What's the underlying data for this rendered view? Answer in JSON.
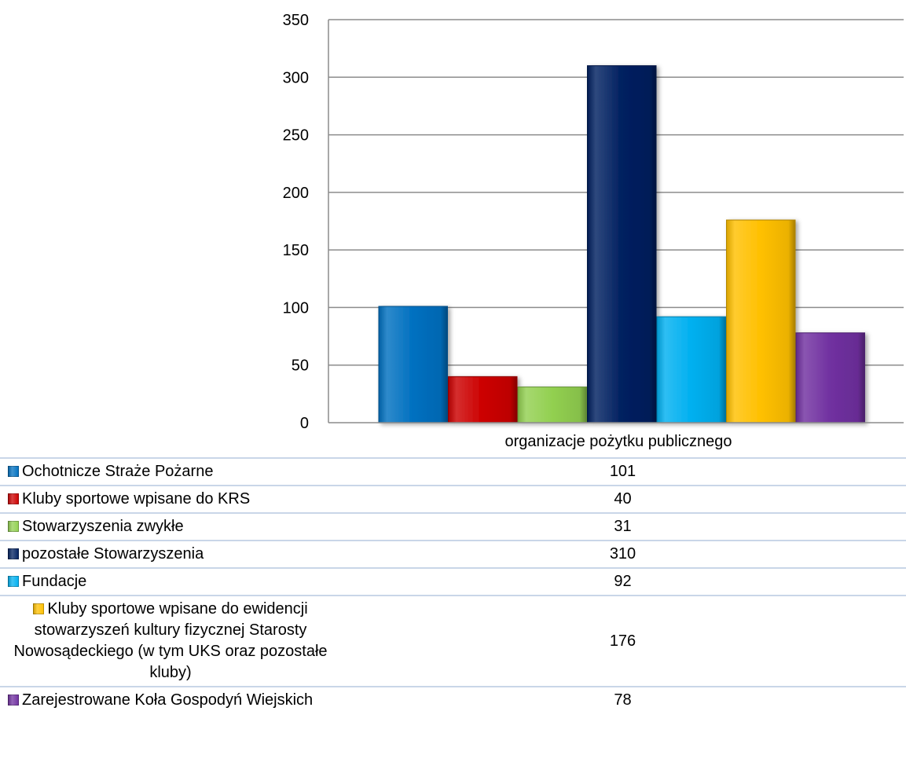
{
  "chart_data": {
    "type": "bar",
    "title": "",
    "xlabel": "",
    "ylabel": "",
    "categories": [
      "organizacje pożytku publicznego"
    ],
    "ylim": [
      0,
      350
    ],
    "yticks": [
      0,
      50,
      100,
      150,
      200,
      250,
      300,
      350
    ],
    "grid": true,
    "legend": "table-below",
    "series": [
      {
        "name": "Ochotnicze Straże Pożarne",
        "values": [
          101
        ],
        "color": "#0070c0"
      },
      {
        "name": "Kluby sportowe wpisane do KRS",
        "values": [
          40
        ],
        "color": "#cc0000"
      },
      {
        "name": "Stowarzyszenia zwykłe",
        "values": [
          31
        ],
        "color": "#92d050"
      },
      {
        "name": "pozostałe Stowarzyszenia",
        "values": [
          310
        ],
        "color": "#002060"
      },
      {
        "name": "Fundacje",
        "values": [
          92
        ],
        "color": "#00b0f0"
      },
      {
        "name": "Kluby sportowe wpisane do ewidencji stowarzyszeń kultury fizycznej Starosty Nowosądeckiego (w tym UKS oraz pozostałe kluby)",
        "values": [
          176
        ],
        "color": "#ffc000"
      },
      {
        "name": "Zarejestrowane Koła Gospodyń Wiejskich",
        "values": [
          78
        ],
        "color": "#7030a0"
      }
    ]
  }
}
